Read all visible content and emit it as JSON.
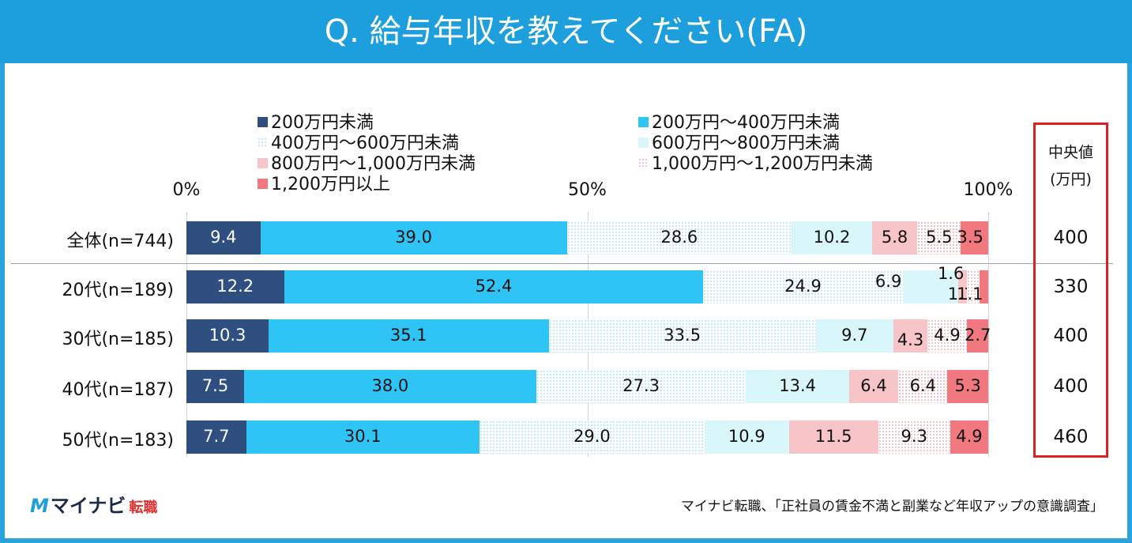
{
  "title": "Q. 給与年収を教えてください(FA)",
  "chart_data": {
    "type": "bar",
    "orientation": "horizontal-stacked-100",
    "axis_ticks": [
      "0%",
      "50%",
      "100%"
    ],
    "categories": [
      "全体(n=744)",
      "20代(n=189)",
      "30代(n=185)",
      "40代(n=187)",
      "50代(n=183)"
    ],
    "series": [
      {
        "name": "200万円未満",
        "color": "#2e4f7f",
        "pattern": "solid",
        "values": [
          9.4,
          12.2,
          10.3,
          7.5,
          7.7
        ]
      },
      {
        "name": "200万円～400万円未満",
        "color": "#2ec4f5",
        "pattern": "solid",
        "values": [
          39.0,
          52.4,
          35.1,
          38.0,
          30.1
        ]
      },
      {
        "name": "400万円～600万円未満",
        "color": "#c6e7f7",
        "pattern": "dots",
        "values": [
          28.6,
          24.9,
          33.5,
          27.3,
          29.0
        ]
      },
      {
        "name": "600万円～800万円未満",
        "color": "#d9f6fb",
        "pattern": "solid",
        "values": [
          10.2,
          6.9,
          9.7,
          13.4,
          10.9
        ]
      },
      {
        "name": "800万円～1,000万円未満",
        "color": "#f7c4c8",
        "pattern": "solid",
        "values": [
          5.8,
          1.1,
          4.3,
          6.4,
          11.5
        ]
      },
      {
        "name": "1,000万円～1,200万円未満",
        "color": "#f3c6ca",
        "pattern": "dots",
        "values": [
          5.5,
          1.6,
          4.9,
          6.4,
          9.3
        ]
      },
      {
        "name": "1,200万円以上",
        "color": "#f0787e",
        "pattern": "solid",
        "values": [
          3.5,
          1.1,
          2.7,
          5.3,
          4.9
        ]
      }
    ],
    "value_labels": [
      [
        "9.4",
        "39.0",
        "28.6",
        "10.2",
        "5.8",
        "5.5",
        "3.5"
      ],
      [
        "12.2",
        "52.4",
        "24.9",
        "6.9",
        "1.1",
        "1.6",
        "1.1"
      ],
      [
        "10.3",
        "35.1",
        "33.5",
        "9.7",
        "4.3",
        "4.9",
        "2.7"
      ],
      [
        "7.5",
        "38.0",
        "27.3",
        "13.4",
        "6.4",
        "6.4",
        "5.3"
      ],
      [
        "7.7",
        "30.1",
        "29.0",
        "10.9",
        "11.5",
        "9.3",
        "4.9"
      ]
    ],
    "median": {
      "header": "中央値",
      "unit": "(万円)",
      "values": [
        "400",
        "330",
        "400",
        "400",
        "460"
      ]
    }
  },
  "logo": {
    "mark": "M",
    "name": "マイナビ",
    "sub": "転職"
  },
  "source": "マイナビ転職、「正社員の賃金不満と副業など年収アップの意識調査」",
  "colors": {
    "title_bg": "#1c9fdc",
    "frame": "#29a3dc",
    "median_box": "#e02020"
  }
}
